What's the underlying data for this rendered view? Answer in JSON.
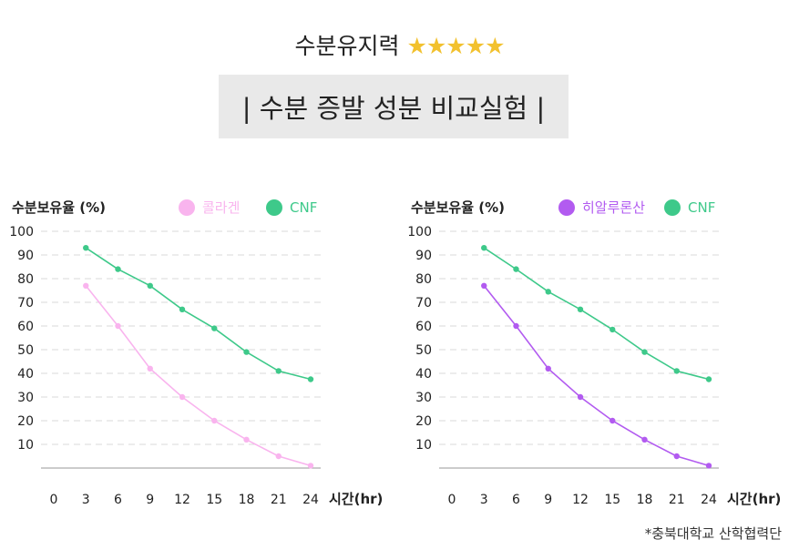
{
  "header": {
    "subtitle": "수분유지력",
    "rating_stars": "★★★★★",
    "title": "| 수분 증발 성분 비교실험 |",
    "footnote": "*충북대학교 산학협력단"
  },
  "colors": {
    "cnf": "#3ec98a",
    "collagen": "#f9b4ee",
    "hyaluronic": "#b25bf0",
    "star": "#f2c12e"
  },
  "chart_data": [
    {
      "type": "line",
      "ylabel": "수분보유율 (%)",
      "xlabel": "시간(hr)",
      "x": [
        3,
        6,
        9,
        12,
        15,
        18,
        21,
        24
      ],
      "x_ticks": [
        0,
        3,
        6,
        9,
        12,
        15,
        18,
        21,
        24
      ],
      "y_ticks": [
        10,
        20,
        30,
        40,
        50,
        60,
        70,
        80,
        90,
        100
      ],
      "xlim": [
        0,
        24
      ],
      "ylim": [
        0,
        100
      ],
      "grid": true,
      "legend": "top",
      "series": [
        {
          "name": "콜라겐",
          "color": "#f9b4ee",
          "values": [
            77,
            60,
            42,
            30,
            20,
            12,
            5,
            1
          ]
        },
        {
          "name": "CNF",
          "color": "#3ec98a",
          "values": [
            93,
            84,
            77,
            67,
            59,
            49,
            41,
            37.5
          ]
        }
      ]
    },
    {
      "type": "line",
      "ylabel": "수분보유율 (%)",
      "xlabel": "시간(hr)",
      "x": [
        3,
        6,
        9,
        12,
        15,
        18,
        21,
        24
      ],
      "x_ticks": [
        0,
        3,
        6,
        9,
        12,
        15,
        18,
        21,
        24
      ],
      "y_ticks": [
        10,
        20,
        30,
        40,
        50,
        60,
        70,
        80,
        90,
        100
      ],
      "xlim": [
        0,
        24
      ],
      "ylim": [
        0,
        100
      ],
      "grid": true,
      "legend": "top",
      "series": [
        {
          "name": "히알루론산",
          "color": "#b25bf0",
          "values": [
            77,
            60,
            42,
            30,
            20,
            12,
            5,
            1
          ]
        },
        {
          "name": "CNF",
          "color": "#3ec98a",
          "values": [
            93,
            84,
            74.5,
            67,
            58.5,
            49,
            41,
            37.5
          ]
        }
      ]
    }
  ]
}
